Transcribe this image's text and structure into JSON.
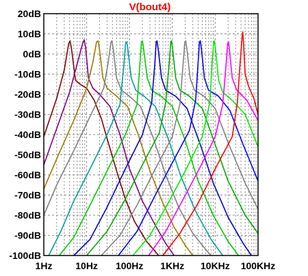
{
  "chart_data": {
    "type": "line",
    "title": "V(bout4)",
    "title_color": "#ff0000",
    "x_scale": "log",
    "x_range_hz": [
      1,
      100000
    ],
    "x_ticks": [
      {
        "value": 1,
        "label": "1Hz"
      },
      {
        "value": 10,
        "label": "10Hz"
      },
      {
        "value": 100,
        "label": "100Hz"
      },
      {
        "value": 1000,
        "label": "1KHz"
      },
      {
        "value": 10000,
        "label": "10KHz"
      },
      {
        "value": 100000,
        "label": "100KHz"
      }
    ],
    "y_range_db": [
      -100,
      20
    ],
    "y_ticks": [
      {
        "value": 20,
        "label": "20dB"
      },
      {
        "value": 10,
        "label": "10dB"
      },
      {
        "value": 0,
        "label": "0dB"
      },
      {
        "value": -10,
        "label": "-10dB"
      },
      {
        "value": -20,
        "label": "-20dB"
      },
      {
        "value": -30,
        "label": "-30dB"
      },
      {
        "value": -40,
        "label": "-40dB"
      },
      {
        "value": -50,
        "label": "-50dB"
      },
      {
        "value": -60,
        "label": "-60dB"
      },
      {
        "value": -70,
        "label": "-70dB"
      },
      {
        "value": -80,
        "label": "-80dB"
      },
      {
        "value": -90,
        "label": "-90dB"
      },
      {
        "value": -100,
        "label": "-100dB"
      }
    ],
    "grid": true,
    "grid_style": "dashed",
    "legend": "none",
    "series": [
      {
        "color": "#800000",
        "points": [
          [
            1,
            -41
          ],
          [
            2,
            -22
          ],
          [
            3,
            -8
          ],
          [
            3.8,
            5
          ],
          [
            4.1,
            6.5
          ],
          [
            4.4,
            3
          ],
          [
            5.5,
            -13
          ],
          [
            7,
            -15
          ],
          [
            10,
            -17
          ],
          [
            15,
            -23
          ],
          [
            22,
            -32
          ],
          [
            30,
            -42
          ],
          [
            50,
            -58
          ],
          [
            80,
            -72
          ],
          [
            130,
            -83
          ],
          [
            250,
            -93
          ],
          [
            480,
            -100
          ]
        ]
      },
      {
        "color": "#800080",
        "points": [
          [
            1,
            -55
          ],
          [
            2,
            -37
          ],
          [
            4,
            -19
          ],
          [
            6,
            -5
          ],
          [
            8,
            5
          ],
          [
            8.8,
            7
          ],
          [
            9.5,
            3
          ],
          [
            11,
            -12
          ],
          [
            14,
            -17
          ],
          [
            20,
            -20
          ],
          [
            35,
            -26
          ],
          [
            60,
            -40
          ],
          [
            100,
            -57
          ],
          [
            200,
            -73
          ],
          [
            400,
            -85
          ],
          [
            700,
            -94
          ],
          [
            1100,
            -100
          ]
        ]
      },
      {
        "color": "#a07800",
        "points": [
          [
            1,
            -67
          ],
          [
            2,
            -52
          ],
          [
            5,
            -33
          ],
          [
            10,
            -17
          ],
          [
            14,
            -4
          ],
          [
            17,
            6
          ],
          [
            18.5,
            6.5
          ],
          [
            20,
            2
          ],
          [
            24,
            -12
          ],
          [
            30,
            -17
          ],
          [
            50,
            -21
          ],
          [
            90,
            -26
          ],
          [
            160,
            -40
          ],
          [
            300,
            -58
          ],
          [
            600,
            -74
          ],
          [
            1100,
            -86
          ],
          [
            2000,
            -95
          ],
          [
            3000,
            -100
          ]
        ]
      },
      {
        "color": "#808080",
        "points": [
          [
            1,
            -80
          ],
          [
            2,
            -65
          ],
          [
            5,
            -48
          ],
          [
            12,
            -31
          ],
          [
            25,
            -17
          ],
          [
            32,
            -4
          ],
          [
            37,
            6
          ],
          [
            39,
            6.5
          ],
          [
            42,
            2
          ],
          [
            50,
            -12
          ],
          [
            65,
            -18
          ],
          [
            100,
            -21
          ],
          [
            180,
            -26
          ],
          [
            350,
            -41
          ],
          [
            700,
            -60
          ],
          [
            1400,
            -76
          ],
          [
            3000,
            -89
          ],
          [
            6000,
            -97
          ],
          [
            8000,
            -100
          ]
        ]
      },
      {
        "color": "#00a0a0",
        "points": [
          [
            1.3,
            -100
          ],
          [
            2.5,
            -88
          ],
          [
            5,
            -73
          ],
          [
            12,
            -57
          ],
          [
            30,
            -40
          ],
          [
            60,
            -25
          ],
          [
            75,
            -4
          ],
          [
            81,
            5.5
          ],
          [
            86,
            6
          ],
          [
            92,
            2
          ],
          [
            110,
            -12
          ],
          [
            140,
            -18
          ],
          [
            220,
            -21
          ],
          [
            400,
            -26
          ],
          [
            800,
            -42
          ],
          [
            1600,
            -61
          ],
          [
            3500,
            -78
          ],
          [
            8000,
            -92
          ],
          [
            15000,
            -100
          ]
        ]
      },
      {
        "color": "#00cc00",
        "points": [
          [
            2.3,
            -100
          ],
          [
            5,
            -91
          ],
          [
            12,
            -75
          ],
          [
            30,
            -58
          ],
          [
            80,
            -40
          ],
          [
            150,
            -25
          ],
          [
            175,
            -5
          ],
          [
            190,
            6
          ],
          [
            200,
            6.5
          ],
          [
            215,
            2
          ],
          [
            260,
            -12
          ],
          [
            330,
            -18
          ],
          [
            550,
            -21
          ],
          [
            1000,
            -26
          ],
          [
            2000,
            -43
          ],
          [
            4000,
            -63
          ],
          [
            9000,
            -80
          ],
          [
            20000,
            -93
          ],
          [
            35000,
            -100
          ]
        ]
      },
      {
        "color": "#0000cc",
        "points": [
          [
            5,
            -100
          ],
          [
            12,
            -92
          ],
          [
            30,
            -76
          ],
          [
            80,
            -57
          ],
          [
            200,
            -40
          ],
          [
            330,
            -24
          ],
          [
            390,
            -5
          ],
          [
            420,
            6
          ],
          [
            440,
            6.5
          ],
          [
            470,
            2
          ],
          [
            560,
            -12
          ],
          [
            700,
            -18
          ],
          [
            1200,
            -21
          ],
          [
            2200,
            -27
          ],
          [
            4500,
            -45
          ],
          [
            9000,
            -64
          ],
          [
            20000,
            -81
          ],
          [
            45000,
            -94
          ],
          [
            70000,
            -100
          ]
        ]
      },
      {
        "color": "#00aa00",
        "points": [
          [
            10,
            -100
          ],
          [
            30,
            -88
          ],
          [
            80,
            -72
          ],
          [
            200,
            -55
          ],
          [
            500,
            -39
          ],
          [
            700,
            -24
          ],
          [
            850,
            -4
          ],
          [
            920,
            6
          ],
          [
            960,
            6.5
          ],
          [
            1020,
            2
          ],
          [
            1200,
            -12
          ],
          [
            1500,
            -18
          ],
          [
            2500,
            -21
          ],
          [
            5000,
            -27
          ],
          [
            10000,
            -45
          ],
          [
            20000,
            -63
          ],
          [
            50000,
            -80
          ],
          [
            100000,
            -89
          ]
        ]
      },
      {
        "color": "#808080",
        "points": [
          [
            22,
            -100
          ],
          [
            60,
            -90
          ],
          [
            150,
            -75
          ],
          [
            400,
            -57
          ],
          [
            1000,
            -41
          ],
          [
            1500,
            -25
          ],
          [
            1800,
            -4
          ],
          [
            1950,
            6
          ],
          [
            2050,
            6.5
          ],
          [
            2200,
            2
          ],
          [
            2600,
            -12
          ],
          [
            3300,
            -18
          ],
          [
            5500,
            -21
          ],
          [
            10000,
            -27
          ],
          [
            20000,
            -44
          ],
          [
            50000,
            -64
          ],
          [
            100000,
            -77
          ]
        ]
      },
      {
        "color": "#0000ff",
        "points": [
          [
            55,
            -100
          ],
          [
            150,
            -88
          ],
          [
            400,
            -70
          ],
          [
            1000,
            -54
          ],
          [
            2500,
            -38
          ],
          [
            3500,
            -23
          ],
          [
            4000,
            -4
          ],
          [
            4300,
            6
          ],
          [
            4500,
            6.5
          ],
          [
            4800,
            2
          ],
          [
            5600,
            -12
          ],
          [
            7000,
            -18
          ],
          [
            12000,
            -21
          ],
          [
            22000,
            -28
          ],
          [
            45000,
            -45
          ],
          [
            100000,
            -63
          ]
        ]
      },
      {
        "color": "#00ee00",
        "points": [
          [
            120,
            -100
          ],
          [
            300,
            -90
          ],
          [
            800,
            -74
          ],
          [
            2000,
            -58
          ],
          [
            5000,
            -41
          ],
          [
            7500,
            -24
          ],
          [
            8500,
            -4
          ],
          [
            9200,
            6
          ],
          [
            9600,
            6.5
          ],
          [
            10200,
            2
          ],
          [
            12000,
            -13
          ],
          [
            15000,
            -19
          ],
          [
            25000,
            -23
          ],
          [
            50000,
            -30
          ],
          [
            100000,
            -46
          ]
        ]
      },
      {
        "color": "#ff00ff",
        "points": [
          [
            280,
            -100
          ],
          [
            700,
            -88
          ],
          [
            1800,
            -72
          ],
          [
            4500,
            -56
          ],
          [
            10000,
            -41
          ],
          [
            15000,
            -25
          ],
          [
            18000,
            -5
          ],
          [
            19500,
            5
          ],
          [
            20500,
            6
          ],
          [
            21500,
            2
          ],
          [
            25000,
            -12
          ],
          [
            32000,
            -18
          ],
          [
            55000,
            -23
          ],
          [
            100000,
            -33
          ]
        ]
      },
      {
        "color": "#ff0000",
        "points": [
          [
            600,
            -100
          ],
          [
            1500,
            -89
          ],
          [
            4000,
            -74
          ],
          [
            10000,
            -57
          ],
          [
            25000,
            -41
          ],
          [
            33000,
            -24
          ],
          [
            38000,
            -5
          ],
          [
            42000,
            7
          ],
          [
            44000,
            11
          ],
          [
            46000,
            5
          ],
          [
            50000,
            -10
          ],
          [
            60000,
            -16
          ],
          [
            80000,
            -22
          ],
          [
            100000,
            -30
          ]
        ]
      }
    ]
  }
}
